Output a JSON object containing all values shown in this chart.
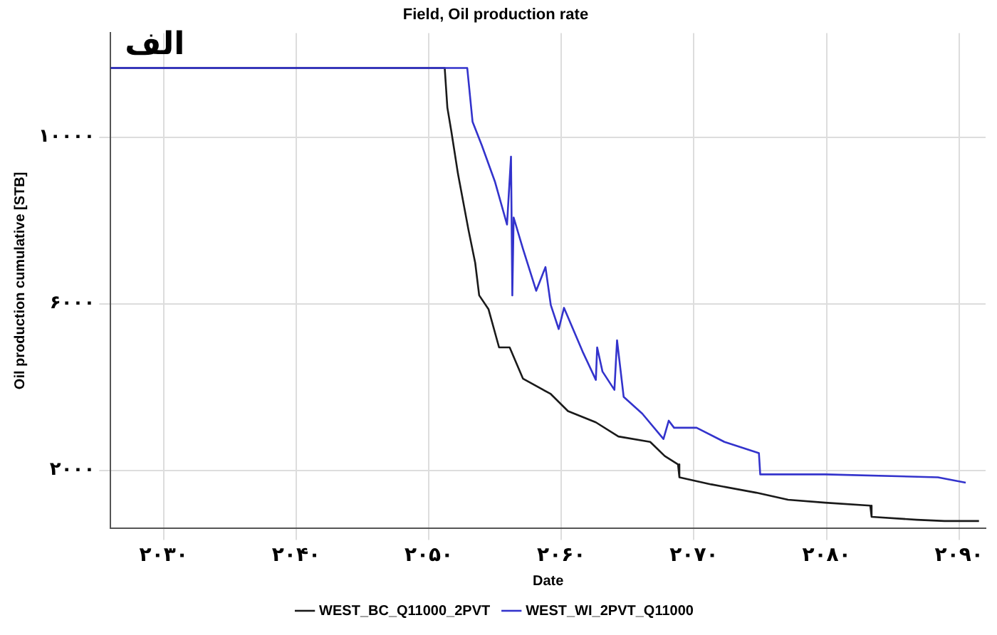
{
  "chart_data": {
    "type": "line",
    "title": "Field, Oil production rate",
    "xlabel": "Date",
    "ylabel": "Oil production cumulative [STB]",
    "annotations": [
      "الف"
    ],
    "xlim": [
      2026,
      2092
    ],
    "xticks": [
      {
        "value": 2030,
        "label": "۲۰۳۰"
      },
      {
        "value": 2040,
        "label": "۲۰۴۰"
      },
      {
        "value": 2050,
        "label": "۲۰۵۰"
      },
      {
        "value": 2060,
        "label": "۲۰۶۰"
      },
      {
        "value": 2070,
        "label": "۲۰۷۰"
      },
      {
        "value": 2080,
        "label": "۲۰۸۰"
      },
      {
        "value": 2090,
        "label": "۲۰۹۰"
      }
    ],
    "ylim": [
      600,
      12500
    ],
    "yticks": [
      {
        "value": 2000,
        "label": "۲۰۰۰"
      },
      {
        "value": 6000,
        "label": "۶۰۰۰"
      },
      {
        "value": 10000,
        "label": "۱۰۰۰۰"
      }
    ],
    "grid": true,
    "legend": "bottom",
    "marker": "none",
    "line_style": "solid",
    "series": [
      {
        "name": "WEST_BC_Q11000_2PVT",
        "color": "#1a1a1a",
        "x": [
          2026,
          2051.2,
          2051.4,
          2051.7,
          2052.2,
          2053.0,
          2053.5,
          2053.8,
          2054.5,
          2055.3,
          2056.1,
          2057.1,
          2059.2,
          2060.5,
          2062.6,
          2064.3,
          2066.7,
          2067.8,
          2068.8,
          2068.9,
          2071.3,
          2074.7,
          2077.1,
          2079.9,
          2083.3,
          2083.4,
          2086.8,
          2088.9,
          2091.5
        ],
        "values": [
          11660,
          11660,
          10710,
          10140,
          9120,
          7760,
          6980,
          6200,
          5870,
          4950,
          4950,
          4200,
          3830,
          3420,
          3150,
          2810,
          2680,
          2340,
          2140,
          1830,
          1660,
          1460,
          1290,
          1220,
          1150,
          880,
          810,
          780,
          780
        ]
      },
      {
        "name": "WEST_WI_2PVT_Q11000",
        "color": "#3333cc",
        "x": [
          2026,
          2052.9,
          2053.3,
          2054.0,
          2055.0,
          2055.9,
          2056.2,
          2056.3,
          2056.4,
          2057.1,
          2058.1,
          2058.8,
          2059.2,
          2059.8,
          2060.2,
          2061.6,
          2062.6,
          2062.7,
          2063.1,
          2064.0,
          2064.2,
          2064.7,
          2066.1,
          2067.7,
          2068.1,
          2068.5,
          2070.2,
          2072.3,
          2074.9,
          2075.0,
          2079.9,
          2088.4,
          2090.5
        ],
        "values": [
          11660,
          11660,
          10370,
          9800,
          8920,
          7900,
          9530,
          6200,
          8070,
          7320,
          6310,
          6880,
          5970,
          5390,
          5900,
          4850,
          4170,
          4950,
          4370,
          3930,
          5120,
          3760,
          3360,
          2750,
          3190,
          3020,
          3020,
          2680,
          2410,
          1900,
          1900,
          1830,
          1700
        ]
      }
    ]
  }
}
